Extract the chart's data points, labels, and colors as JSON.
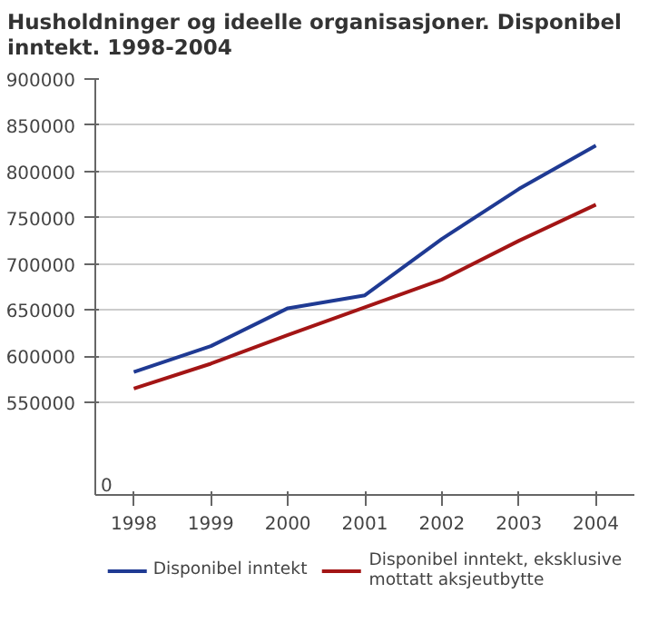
{
  "chart_data": {
    "type": "line",
    "title": "Husholdninger og ideelle organisasjoner. Disponibel inntekt. 1998-2004",
    "categories": [
      "1998",
      "1999",
      "2000",
      "2001",
      "2002",
      "2003",
      "2004"
    ],
    "series": [
      {
        "name": "Disponibel inntekt",
        "color": "#1f3a93",
        "values": [
          583000,
          611000,
          652000,
          666000,
          727000,
          781000,
          828000
        ]
      },
      {
        "name": "Disponibel inntekt, eksklusive mottatt aksjeutbytte",
        "color": "#a31515",
        "values": [
          565000,
          592000,
          623000,
          653000,
          683000,
          725000,
          764000
        ]
      }
    ],
    "ylim": [
      450000,
      900000
    ],
    "yticks": [
      550000,
      600000,
      650000,
      700000,
      750000,
      800000,
      850000,
      900000
    ],
    "annotations": [
      "0"
    ],
    "grid": "y",
    "legend": "bottom",
    "line_style": "solid"
  }
}
